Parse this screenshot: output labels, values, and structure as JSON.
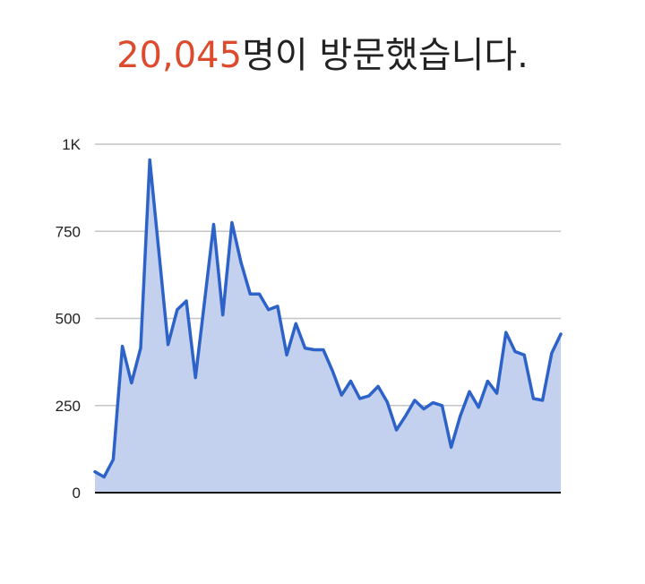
{
  "headline": {
    "count": "20,045",
    "suffix": "명이 방문했습니다."
  },
  "colors": {
    "count": "#dd4b2f",
    "line": "#2d62c8",
    "area": "#c3d1ef",
    "grid": "#c4c4c4",
    "baseline": "#111111"
  },
  "chart_data": {
    "type": "area",
    "ylim": [
      0,
      1000
    ],
    "y_ticks": [
      {
        "value": 0,
        "label": "0"
      },
      {
        "value": 250,
        "label": "250"
      },
      {
        "value": 500,
        "label": "500"
      },
      {
        "value": 750,
        "label": "750"
      },
      {
        "value": 1000,
        "label": "1K"
      }
    ],
    "grid": true,
    "values": [
      60,
      45,
      95,
      420,
      315,
      415,
      955,
      690,
      425,
      525,
      550,
      330,
      550,
      770,
      510,
      775,
      660,
      570,
      570,
      525,
      535,
      395,
      485,
      415,
      410,
      410,
      350,
      280,
      320,
      270,
      278,
      305,
      260,
      180,
      220,
      265,
      240,
      258,
      250,
      130,
      220,
      290,
      245,
      320,
      285,
      460,
      405,
      395,
      270,
      265,
      400,
      455
    ]
  }
}
